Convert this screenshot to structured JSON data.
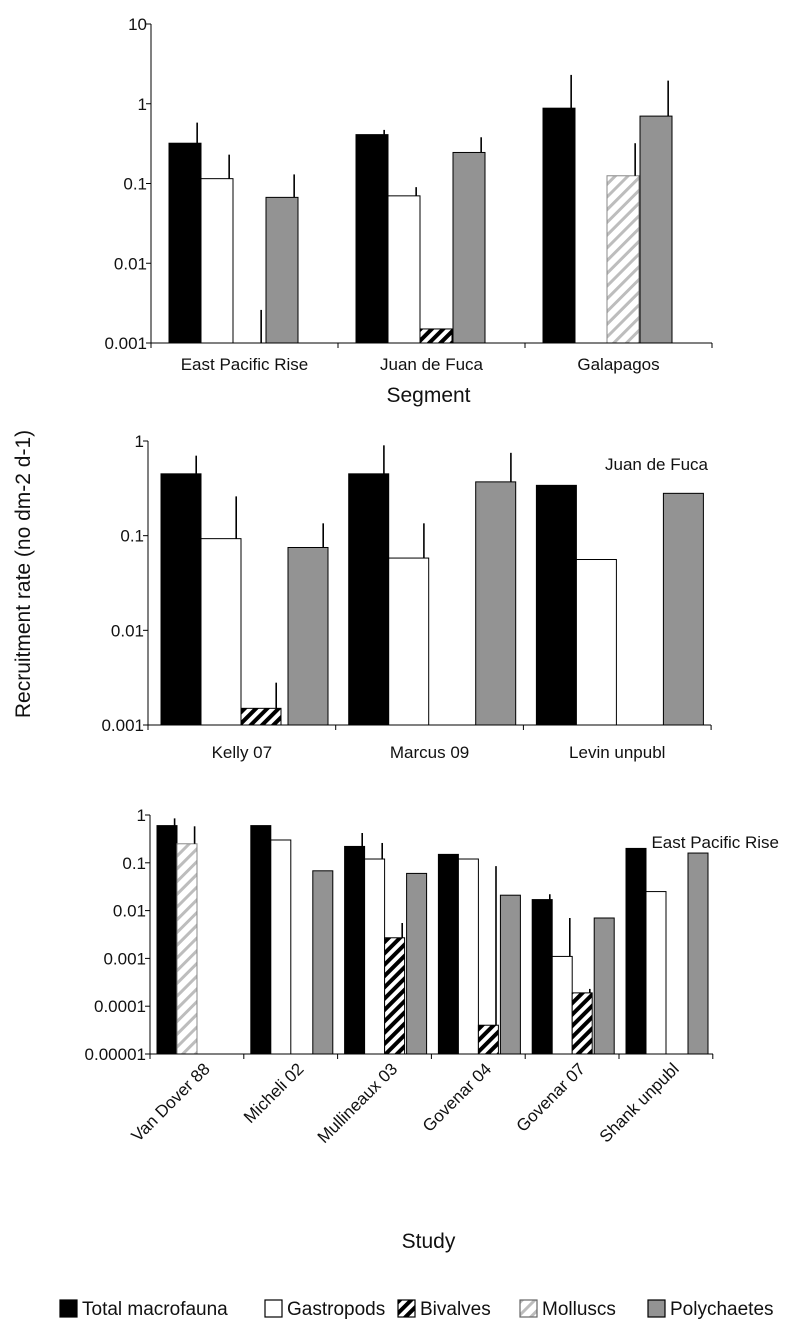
{
  "y_axis_label": "Recruitment rate (no dm-2 d-1)",
  "legend": [
    {
      "name": "Total macrofauna",
      "fill": "#000000",
      "pattern": "solid"
    },
    {
      "name": "Gastropods",
      "fill": "#ffffff",
      "pattern": "solid"
    },
    {
      "name": "Bivalves",
      "fill": "#ffffff",
      "pattern": "bold-hatch"
    },
    {
      "name": "Molluscs",
      "fill": "#ffffff",
      "pattern": "light-hatch"
    },
    {
      "name": "Polychaetes",
      "fill": "#939393",
      "pattern": "solid"
    }
  ],
  "chart_data": [
    {
      "type": "bar",
      "yscale": "log",
      "ylim": [
        0.001,
        10
      ],
      "ticks": [
        "10",
        "1",
        "0.1",
        "0.01",
        "0.001"
      ],
      "xlabel": "Segment",
      "annotation": "",
      "categories": [
        "East Pacific Rise",
        "Juan de Fuca",
        "Galapagos"
      ],
      "series": [
        {
          "name": "Total macrofauna",
          "values": [
            0.32,
            0.41,
            0.88
          ],
          "errors": [
            0.58,
            0.47,
            2.3
          ]
        },
        {
          "name": "Gastropods",
          "values": [
            0.115,
            0.07,
            null
          ],
          "errors": [
            0.23,
            0.09,
            null
          ]
        },
        {
          "name": "Bivalves",
          "values": [
            0.001,
            0.0015,
            null
          ],
          "errors": [
            0.0026,
            null,
            null
          ]
        },
        {
          "name": "Molluscs",
          "values": [
            null,
            null,
            0.125
          ],
          "errors": [
            null,
            null,
            0.32
          ]
        },
        {
          "name": "Polychaetes",
          "values": [
            0.067,
            0.245,
            0.7
          ],
          "errors": [
            0.13,
            0.38,
            1.95
          ]
        }
      ]
    },
    {
      "type": "bar",
      "yscale": "log",
      "ylim": [
        0.001,
        1
      ],
      "ticks": [
        "1",
        "0.1",
        "0.01",
        "0.001"
      ],
      "xlabel": "",
      "annotation": "Juan de Fuca",
      "categories": [
        "Kelly 07",
        "Marcus 09",
        "Levin unpubl"
      ],
      "series": [
        {
          "name": "Total macrofauna",
          "values": [
            0.45,
            0.45,
            0.34
          ],
          "errors": [
            0.7,
            0.9,
            null
          ]
        },
        {
          "name": "Gastropods",
          "values": [
            0.093,
            0.058,
            0.056
          ],
          "errors": [
            0.26,
            0.135,
            null
          ]
        },
        {
          "name": "Bivalves",
          "values": [
            0.0015,
            null,
            null
          ],
          "errors": [
            0.0028,
            null,
            null
          ]
        },
        {
          "name": "Molluscs",
          "values": [
            null,
            null,
            null
          ],
          "errors": [
            null,
            null,
            null
          ]
        },
        {
          "name": "Polychaetes",
          "values": [
            0.075,
            0.37,
            0.28
          ],
          "errors": [
            0.135,
            0.75,
            null
          ]
        }
      ]
    },
    {
      "type": "bar",
      "yscale": "log",
      "ylim": [
        1e-05,
        1
      ],
      "ticks": [
        "1",
        "0.1",
        "0.01",
        "0.001",
        "0.0001",
        "0.00001"
      ],
      "xlabel": "Study",
      "annotation": "East Pacific Rise",
      "categories": [
        "Van Dover 88",
        "Micheli 02",
        "Mullineaux 03",
        "Govenar 04",
        "Govenar 07",
        "Shank unpubl"
      ],
      "series": [
        {
          "name": "Total macrofauna",
          "values": [
            0.6,
            0.6,
            0.22,
            0.15,
            0.017,
            0.2
          ],
          "errors": [
            0.85,
            null,
            0.42,
            null,
            0.022,
            null
          ]
        },
        {
          "name": "Gastropods",
          "values": [
            null,
            0.3,
            0.12,
            0.12,
            0.0011,
            0.025
          ],
          "errors": [
            null,
            null,
            0.26,
            null,
            0.007,
            null
          ]
        },
        {
          "name": "Bivalves",
          "values": [
            null,
            null,
            0.0027,
            4e-05,
            0.00019,
            null
          ],
          "errors": [
            null,
            null,
            0.0055,
            0.085,
            0.00023,
            null
          ]
        },
        {
          "name": "Molluscs",
          "values": [
            0.25,
            null,
            null,
            null,
            null,
            null
          ],
          "errors": [
            0.58,
            null,
            null,
            null,
            null,
            null
          ]
        },
        {
          "name": "Polychaetes",
          "values": [
            null,
            0.068,
            0.06,
            0.021,
            0.007,
            0.16
          ],
          "errors": [
            null,
            null,
            null,
            null,
            null,
            null
          ]
        }
      ]
    }
  ]
}
